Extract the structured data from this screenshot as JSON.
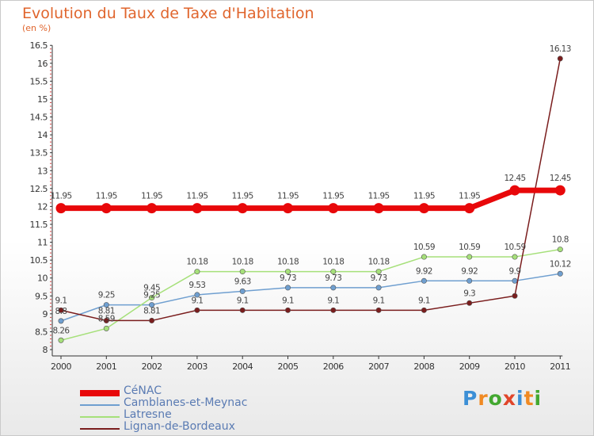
{
  "title": "Evolution du Taux de Taxe d'Habitation",
  "unit": "(en %)",
  "logo": {
    "text": "Proxiti",
    "colors": [
      "#3c8fd6",
      "#f08a23",
      "#43a830",
      "#e0452a",
      "#3c8fd6",
      "#f08a23",
      "#43a830"
    ]
  },
  "chart_data": {
    "type": "line",
    "categories": [
      "2000",
      "2001",
      "2002",
      "2003",
      "2004",
      "2005",
      "2006",
      "2007",
      "2008",
      "2009",
      "2010",
      "2011"
    ],
    "ylim": [
      8,
      16.5
    ],
    "yticks": [
      "8",
      "8.5",
      "9",
      "9.5",
      "10",
      "10.5",
      "11",
      "11.5",
      "12",
      "12.5",
      "13",
      "13.5",
      "14",
      "14.5",
      "15",
      "15.5",
      "16",
      "16.5"
    ],
    "grid": false,
    "legend_position": "bottom-left",
    "series": [
      {
        "name": "CéNAC",
        "color": "#e8080a",
        "values": [
          11.95,
          11.95,
          11.95,
          11.95,
          11.95,
          11.95,
          11.95,
          11.95,
          11.95,
          11.95,
          12.45,
          12.45
        ],
        "labels": [
          "11.95",
          "11.95",
          "11.95",
          "11.95",
          "11.95",
          "11.95",
          "11.95",
          "11.95",
          "11.95",
          "11.95",
          "12.45",
          "12.45"
        ]
      },
      {
        "name": "Camblanes-et-Meynac",
        "color": "#6f9fd0",
        "values": [
          8.8,
          9.25,
          9.25,
          9.53,
          9.63,
          9.73,
          9.73,
          9.73,
          9.92,
          9.92,
          9.92,
          10.12
        ],
        "labels": [
          "8.8",
          "9.25",
          "9.25",
          "9.53",
          "9.63",
          "9.73",
          "9.73",
          "9.73",
          "9.92",
          "9.92",
          "9.9",
          "10.12"
        ]
      },
      {
        "name": "Latresne",
        "color": "#a6e07a",
        "values": [
          8.26,
          8.59,
          9.45,
          10.18,
          10.18,
          10.18,
          10.18,
          10.18,
          10.59,
          10.59,
          10.59,
          10.8
        ],
        "labels": [
          "8.26",
          "8.59",
          "9.45",
          "10.18",
          "10.18",
          "10.18",
          "10.18",
          "10.18",
          "10.59",
          "10.59",
          "10.59",
          "10.8"
        ]
      },
      {
        "name": "Lignan-de-Bordeaux",
        "color": "#7a1d1d",
        "values": [
          9.1,
          8.81,
          8.81,
          9.1,
          9.1,
          9.1,
          9.1,
          9.1,
          9.1,
          9.3,
          9.5,
          16.13
        ],
        "labels": [
          "9.1",
          "8.81",
          "8.81",
          "9.1",
          "9.1",
          "9.1",
          "9.1",
          "9.1",
          "9.1",
          "9.3",
          "",
          "16.13"
        ]
      }
    ]
  }
}
